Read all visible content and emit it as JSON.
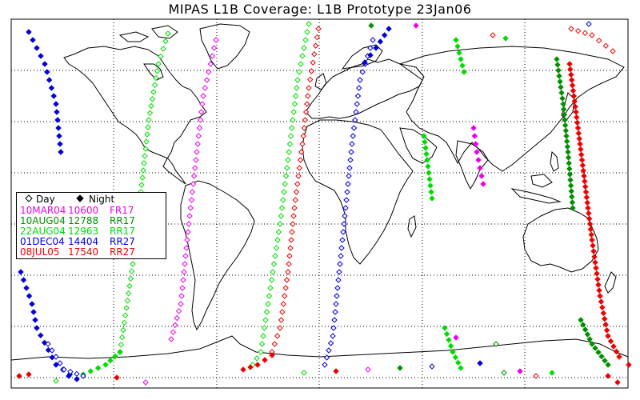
{
  "title": "MIPAS L1B Coverage: L1B Prototype 23Jan06",
  "legend": {
    "day_label": "Day",
    "night_label": "Night",
    "entries": [
      {
        "date": "10MAR04",
        "orbit": "10600",
        "code": "FR17",
        "color": "#ee00ee"
      },
      {
        "date": "10AUG04",
        "orbit": "12788",
        "code": "RR17",
        "color": "#009000"
      },
      {
        "date": "22AUG04",
        "orbit": "12963",
        "code": "RR17",
        "color": "#00dd00"
      },
      {
        "date": "01DEC04",
        "orbit": "14404",
        "code": "RR27",
        "color": "#0000dd"
      },
      {
        "date": "08JUL05",
        "orbit": "17540",
        "code": "RR27",
        "color": "#ee0000"
      }
    ]
  },
  "colors": {
    "coastline": "#000000",
    "grid": "#000000",
    "background": "#ffffff"
  }
}
